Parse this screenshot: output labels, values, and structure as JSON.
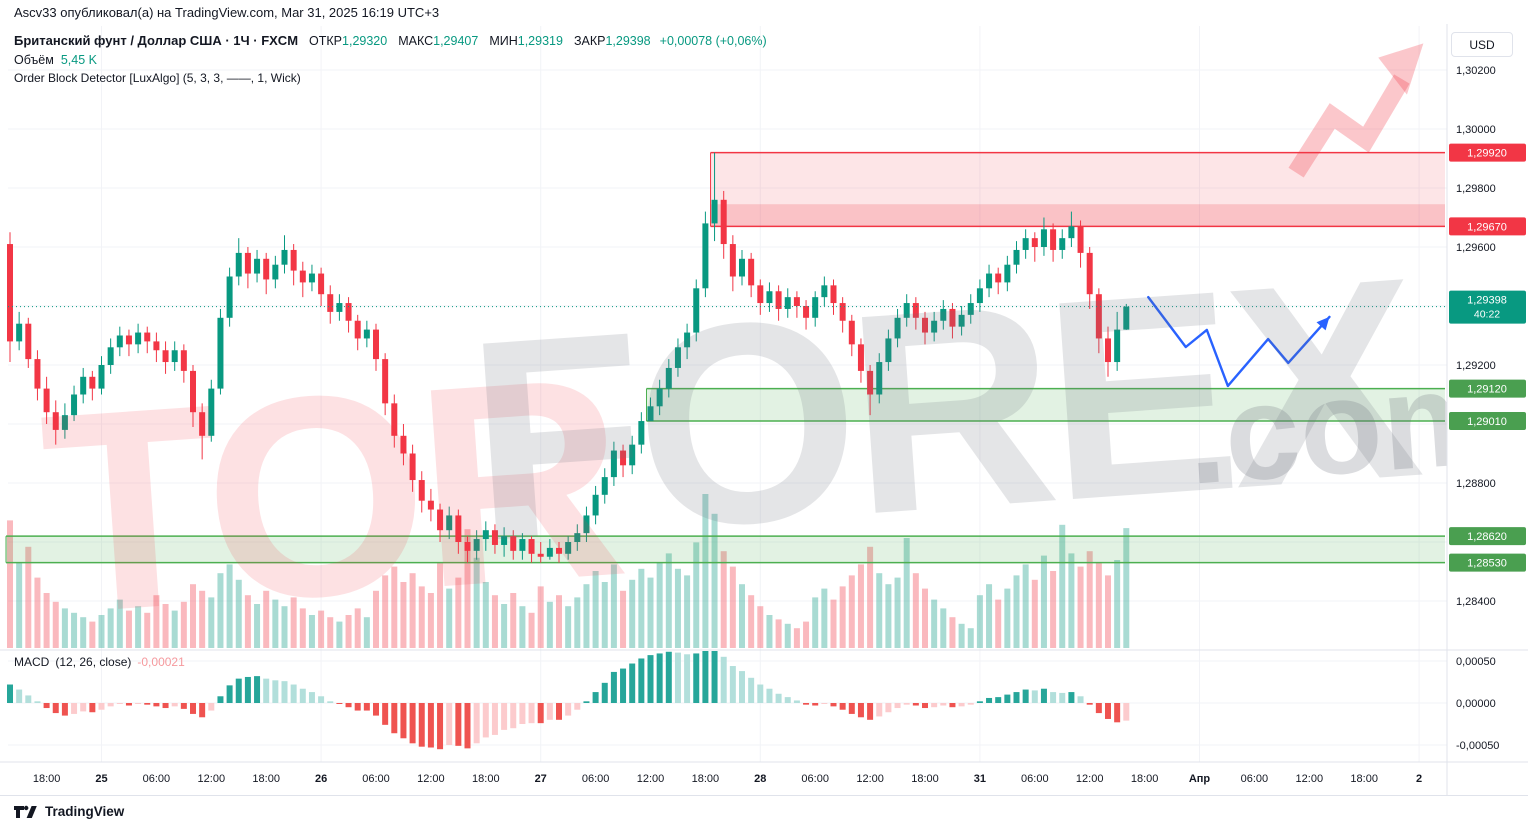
{
  "publisher_line": "Ascv33 опубликовал(а) на TradingView.com, Mar 31, 2025 16:19 UTC+3",
  "header": {
    "symbol_title": "Британский фунт / Доллар США · 1Ч · FXCM",
    "open_label": "ОТКР",
    "open_value": "1,29320",
    "high_label": "МАКС",
    "high_value": "1,29407",
    "low_label": "МИН",
    "low_value": "1,29319",
    "close_label": "ЗАКР",
    "close_value": "1,29398",
    "change": "+0,00078 (+0,06%)",
    "volume_label": "Объём",
    "volume_value": "5,45 K",
    "indicator_line": "Order Block Detector [LuxAlgo] (5, 3, 3, ——, 1, Wick)"
  },
  "macd_legend": {
    "name": "MACD",
    "params": "(12, 26, close)",
    "value": "-0,00021"
  },
  "currency_button": "USD",
  "footer_brand": "TradingView",
  "watermark": {
    "left": "TOR",
    "right": "FOREX",
    "suffix": ".com"
  },
  "chart_data": {
    "type": "candlestick",
    "title": "GBP/USD · 1H · FXCM with volume and MACD panes",
    "panes": [
      "price+volume+order-blocks",
      "macd-histogram"
    ],
    "price_axis_labels": [
      {
        "text": "1,30200",
        "value": 1.302
      },
      {
        "text": "1,30000",
        "value": 1.3
      },
      {
        "text": "1,29800",
        "value": 1.298
      },
      {
        "text": "1,29600",
        "value": 1.296
      },
      {
        "text": "1,29200",
        "value": 1.292
      },
      {
        "text": "1,28800",
        "value": 1.288
      },
      {
        "text": "1,28400",
        "value": 1.284
      }
    ],
    "macd_axis_labels": [
      {
        "text": "0,00050",
        "value": 0.0005
      },
      {
        "text": "0,00000",
        "value": 0.0
      },
      {
        "text": "-0,00050",
        "value": -0.0005
      }
    ],
    "time_axis_labels": [
      [
        4,
        "18:00",
        false
      ],
      [
        10,
        "25",
        true
      ],
      [
        16,
        "06:00",
        false
      ],
      [
        22,
        "12:00",
        false
      ],
      [
        28,
        "18:00",
        false
      ],
      [
        34,
        "26",
        true
      ],
      [
        40,
        "06:00",
        false
      ],
      [
        46,
        "12:00",
        false
      ],
      [
        52,
        "18:00",
        false
      ],
      [
        58,
        "27",
        true
      ],
      [
        64,
        "06:00",
        false
      ],
      [
        70,
        "12:00",
        false
      ],
      [
        76,
        "18:00",
        false
      ],
      [
        82,
        "28",
        true
      ],
      [
        88,
        "06:00",
        false
      ],
      [
        94,
        "12:00",
        false
      ],
      [
        100,
        "18:00",
        false
      ],
      [
        106,
        "31",
        true
      ],
      [
        112,
        "06:00",
        false
      ],
      [
        118,
        "12:00",
        false
      ],
      [
        124,
        "18:00",
        false
      ],
      [
        130,
        "Апр",
        true
      ],
      [
        136,
        "06:00",
        false
      ],
      [
        142,
        "12:00",
        false
      ],
      [
        148,
        "18:00",
        false
      ],
      [
        154,
        "2",
        true
      ]
    ],
    "candles": [
      [
        1.2961,
        1.2965,
        1.2921,
        1.2928
      ],
      [
        1.2928,
        1.2938,
        1.2925,
        1.2934
      ],
      [
        1.2934,
        1.2936,
        1.2919,
        1.2922
      ],
      [
        1.2922,
        1.2925,
        1.2908,
        1.2912
      ],
      [
        1.2912,
        1.2916,
        1.29,
        1.2904
      ],
      [
        1.2904,
        1.2908,
        1.2893,
        1.2898
      ],
      [
        1.2898,
        1.2907,
        1.2895,
        1.2903
      ],
      [
        1.2903,
        1.2913,
        1.2901,
        1.291
      ],
      [
        1.291,
        1.2919,
        1.2907,
        1.2916
      ],
      [
        1.2916,
        1.2918,
        1.2908,
        1.2912
      ],
      [
        1.2912,
        1.2923,
        1.291,
        1.292
      ],
      [
        1.292,
        1.2929,
        1.2917,
        1.2926
      ],
      [
        1.2926,
        1.2933,
        1.2923,
        1.293
      ],
      [
        1.293,
        1.2932,
        1.2923,
        1.2927
      ],
      [
        1.2927,
        1.2934,
        1.2924,
        1.2931
      ],
      [
        1.2931,
        1.2933,
        1.2924,
        1.2928
      ],
      [
        1.2928,
        1.2931,
        1.2921,
        1.2925
      ],
      [
        1.2925,
        1.2928,
        1.2917,
        1.2921
      ],
      [
        1.2921,
        1.2928,
        1.2918,
        1.2925
      ],
      [
        1.2925,
        1.2927,
        1.2914,
        1.2918
      ],
      [
        1.2918,
        1.292,
        1.2899,
        1.2904
      ],
      [
        1.2904,
        1.2907,
        1.2888,
        1.2896
      ],
      [
        1.2896,
        1.2915,
        1.2894,
        1.2912
      ],
      [
        1.2912,
        1.2939,
        1.291,
        1.2936
      ],
      [
        1.2936,
        1.2953,
        1.2933,
        1.295
      ],
      [
        1.295,
        1.2963,
        1.2947,
        1.2958
      ],
      [
        1.2958,
        1.296,
        1.2946,
        1.2951
      ],
      [
        1.2951,
        1.2959,
        1.2948,
        1.2956
      ],
      [
        1.2956,
        1.2958,
        1.2944,
        1.2949
      ],
      [
        1.2949,
        1.2957,
        1.2946,
        1.2954
      ],
      [
        1.2954,
        1.2964,
        1.2951,
        1.2959
      ],
      [
        1.2959,
        1.2961,
        1.2947,
        1.2952
      ],
      [
        1.2952,
        1.2955,
        1.2943,
        1.2948
      ],
      [
        1.2948,
        1.2954,
        1.2945,
        1.2951
      ],
      [
        1.2951,
        1.2953,
        1.294,
        1.2944
      ],
      [
        1.2944,
        1.2947,
        1.2934,
        1.2938
      ],
      [
        1.2938,
        1.2944,
        1.2935,
        1.2941
      ],
      [
        1.2941,
        1.2943,
        1.2931,
        1.2935
      ],
      [
        1.2935,
        1.2937,
        1.2925,
        1.2929
      ],
      [
        1.2929,
        1.2935,
        1.2926,
        1.2932
      ],
      [
        1.2932,
        1.2934,
        1.2918,
        1.2922
      ],
      [
        1.2922,
        1.2924,
        1.2903,
        1.2907
      ],
      [
        1.2907,
        1.291,
        1.2892,
        1.2896
      ],
      [
        1.2896,
        1.29,
        1.2886,
        1.289
      ],
      [
        1.289,
        1.2893,
        1.2877,
        1.2881
      ],
      [
        1.2881,
        1.2884,
        1.287,
        1.2874
      ],
      [
        1.2874,
        1.2878,
        1.2867,
        1.2871
      ],
      [
        1.2871,
        1.2873,
        1.286,
        1.2864
      ],
      [
        1.2864,
        1.2872,
        1.2861,
        1.2869
      ],
      [
        1.2869,
        1.2871,
        1.2856,
        1.286
      ],
      [
        1.286,
        1.2862,
        1.2853,
        1.2857
      ],
      [
        1.2857,
        1.2864,
        1.2854,
        1.2861
      ],
      [
        1.2861,
        1.2867,
        1.2857,
        1.2864
      ],
      [
        1.2864,
        1.2866,
        1.2856,
        1.2859
      ],
      [
        1.2859,
        1.2865,
        1.2855,
        1.2862
      ],
      [
        1.2862,
        1.2864,
        1.2854,
        1.2857
      ],
      [
        1.2857,
        1.2863,
        1.2854,
        1.2861
      ],
      [
        1.2861,
        1.2862,
        1.2853,
        1.2856
      ],
      [
        1.2856,
        1.286,
        1.2853,
        1.2855
      ],
      [
        1.2855,
        1.2861,
        1.2854,
        1.2858
      ],
      [
        1.2858,
        1.286,
        1.2853,
        1.2856
      ],
      [
        1.2856,
        1.2862,
        1.2854,
        1.286
      ],
      [
        1.286,
        1.2866,
        1.2857,
        1.2863
      ],
      [
        1.2863,
        1.2872,
        1.286,
        1.2869
      ],
      [
        1.2869,
        1.2879,
        1.2866,
        1.2876
      ],
      [
        1.2876,
        1.2885,
        1.2873,
        1.2882
      ],
      [
        1.2882,
        1.2894,
        1.2879,
        1.2891
      ],
      [
        1.2891,
        1.2893,
        1.2882,
        1.2886
      ],
      [
        1.2886,
        1.2896,
        1.2883,
        1.2893
      ],
      [
        1.2893,
        1.2904,
        1.289,
        1.2901
      ],
      [
        1.2901,
        1.2909,
        1.2901,
        1.2906
      ],
      [
        1.2906,
        1.2915,
        1.2903,
        1.2912
      ],
      [
        1.2912,
        1.2922,
        1.2909,
        1.2919
      ],
      [
        1.2919,
        1.2929,
        1.2916,
        1.2926
      ],
      [
        1.2926,
        1.2934,
        1.2922,
        1.2931
      ],
      [
        1.2931,
        1.2949,
        1.2928,
        1.2946
      ],
      [
        1.2946,
        1.2972,
        1.2943,
        1.2968
      ],
      [
        1.2968,
        1.2992,
        1.2962,
        1.2976
      ],
      [
        1.2976,
        1.2979,
        1.2956,
        1.2961
      ],
      [
        1.2961,
        1.2964,
        1.2945,
        1.295
      ],
      [
        1.295,
        1.2959,
        1.2947,
        1.2956
      ],
      [
        1.2956,
        1.2958,
        1.2943,
        1.2947
      ],
      [
        1.2947,
        1.2949,
        1.2937,
        1.2941
      ],
      [
        1.2941,
        1.2948,
        1.2938,
        1.2945
      ],
      [
        1.2945,
        1.2947,
        1.2935,
        1.2939
      ],
      [
        1.2939,
        1.2946,
        1.2936,
        1.2943
      ],
      [
        1.2943,
        1.2945,
        1.2936,
        1.294
      ],
      [
        1.294,
        1.2942,
        1.2932,
        1.2936
      ],
      [
        1.2936,
        1.2945,
        1.2933,
        1.2943
      ],
      [
        1.2943,
        1.295,
        1.294,
        1.2947
      ],
      [
        1.2947,
        1.2949,
        1.2937,
        1.2941
      ],
      [
        1.2941,
        1.2943,
        1.2931,
        1.2935
      ],
      [
        1.2935,
        1.2937,
        1.2923,
        1.2927
      ],
      [
        1.2927,
        1.2929,
        1.2914,
        1.2918
      ],
      [
        1.2918,
        1.292,
        1.2903,
        1.291
      ],
      [
        1.291,
        1.2924,
        1.2907,
        1.2921
      ],
      [
        1.2921,
        1.2932,
        1.2918,
        1.2929
      ],
      [
        1.2929,
        1.2939,
        1.2926,
        1.2936
      ],
      [
        1.2936,
        1.2944,
        1.2933,
        1.2941
      ],
      [
        1.2941,
        1.2943,
        1.2932,
        1.2936
      ],
      [
        1.2936,
        1.2938,
        1.2927,
        1.2931
      ],
      [
        1.2931,
        1.2938,
        1.2928,
        1.2935
      ],
      [
        1.2935,
        1.2942,
        1.2932,
        1.2939
      ],
      [
        1.2939,
        1.2941,
        1.2929,
        1.2933
      ],
      [
        1.2933,
        1.294,
        1.293,
        1.2937
      ],
      [
        1.2937,
        1.2944,
        1.2934,
        1.2941
      ],
      [
        1.2941,
        1.2949,
        1.2938,
        1.2946
      ],
      [
        1.2946,
        1.2954,
        1.2943,
        1.2951
      ],
      [
        1.2951,
        1.2953,
        1.2944,
        1.2948
      ],
      [
        1.2948,
        1.2957,
        1.2945,
        1.2954
      ],
      [
        1.2954,
        1.2962,
        1.2951,
        1.2959
      ],
      [
        1.2959,
        1.2966,
        1.2956,
        1.2963
      ],
      [
        1.2963,
        1.2965,
        1.2955,
        1.296
      ],
      [
        1.296,
        1.297,
        1.2957,
        1.2966
      ],
      [
        1.2966,
        1.2968,
        1.2955,
        1.2959
      ],
      [
        1.2959,
        1.2966,
        1.2956,
        1.2963
      ],
      [
        1.2963,
        1.2972,
        1.296,
        1.2967
      ],
      [
        1.2967,
        1.2969,
        1.2953,
        1.2958
      ],
      [
        1.2958,
        1.296,
        1.2939,
        1.2944
      ],
      [
        1.2944,
        1.2946,
        1.2924,
        1.2929
      ],
      [
        1.2929,
        1.2933,
        1.2916,
        1.2921
      ],
      [
        1.2921,
        1.2938,
        1.2918,
        1.2932
      ],
      [
        1.2932,
        1.29407,
        1.29319,
        1.29398
      ]
    ],
    "volume_k": [
      5.8,
      3.9,
      4.6,
      3.2,
      2.5,
      2.1,
      1.8,
      1.6,
      1.4,
      1.2,
      1.5,
      1.8,
      2.2,
      1.7,
      1.9,
      1.6,
      2.4,
      2.0,
      1.7,
      2.1,
      2.9,
      2.6,
      2.3,
      3.4,
      3.8,
      3.1,
      2.4,
      2.0,
      2.6,
      2.2,
      1.9,
      2.3,
      1.8,
      1.5,
      1.7,
      1.4,
      1.2,
      1.5,
      1.8,
      1.4,
      2.6,
      3.3,
      3.7,
      3.0,
      3.4,
      2.8,
      2.5,
      3.9,
      2.7,
      3.2,
      5.4,
      4.1,
      3.0,
      2.4,
      2.0,
      2.5,
      1.9,
      1.6,
      2.8,
      2.1,
      2.4,
      1.9,
      2.3,
      2.9,
      3.5,
      3.0,
      3.8,
      2.6,
      3.1,
      3.6,
      3.2,
      3.9,
      4.3,
      3.6,
      3.3,
      4.8,
      7.0,
      6.1,
      4.4,
      3.7,
      2.9,
      2.4,
      1.9,
      1.5,
      1.3,
      1.1,
      0.9,
      1.2,
      2.3,
      2.7,
      2.2,
      2.8,
      3.3,
      3.8,
      4.6,
      3.4,
      2.9,
      3.2,
      5.0,
      3.4,
      2.7,
      2.2,
      1.8,
      1.4,
      1.1,
      0.9,
      2.4,
      2.9,
      2.2,
      2.7,
      3.3,
      3.8,
      3.1,
      4.2,
      3.5,
      5.6,
      4.3,
      3.7,
      4.4,
      3.9,
      3.3,
      4.0,
      5.45
    ],
    "macd_hist": [
      0.00022,
      0.00016,
      9e-05,
      2e-05,
      -6e-05,
      -0.00012,
      -0.00015,
      -0.00013,
      -0.0001,
      -0.00011,
      -8e-05,
      -4e-05,
      -1e-05,
      -3e-05,
      -1e-05,
      -2e-05,
      -4e-05,
      -6e-05,
      -4e-05,
      -7e-05,
      -0.00013,
      -0.00017,
      -9e-05,
      8e-05,
      0.00021,
      0.00029,
      0.00031,
      0.00032,
      0.00029,
      0.00027,
      0.00026,
      0.00022,
      0.00017,
      0.00013,
      8e-05,
      2e-05,
      -1e-05,
      -5e-05,
      -9e-05,
      -9e-05,
      -0.00015,
      -0.00026,
      -0.00036,
      -0.00042,
      -0.00048,
      -0.00052,
      -0.00053,
      -0.00055,
      -0.0005,
      -0.00051,
      -0.00054,
      -0.00048,
      -0.00041,
      -0.00038,
      -0.00032,
      -0.0003,
      -0.00025,
      -0.00024,
      -0.00024,
      -0.0002,
      -0.0002,
      -0.00015,
      -8e-05,
      2e-05,
      0.00013,
      0.00024,
      0.00037,
      0.00041,
      0.00047,
      0.00053,
      0.00057,
      0.00059,
      0.00061,
      0.0006,
      0.00058,
      0.00059,
      0.00062,
      0.00063,
      0.00055,
      0.00044,
      0.00038,
      0.0003,
      0.00022,
      0.00017,
      0.00011,
      7e-05,
      3e-05,
      -2e-05,
      -3e-05,
      -1e-05,
      -4e-05,
      -8e-05,
      -0.00013,
      -0.00017,
      -0.0002,
      -0.00016,
      -0.00011,
      -6e-05,
      -2e-05,
      -3e-05,
      -6e-05,
      -5e-05,
      -3e-05,
      -5e-05,
      -4e-05,
      -2e-05,
      2e-05,
      6e-05,
      7e-05,
      0.0001,
      0.00013,
      0.00016,
      0.00015,
      0.00017,
      0.00013,
      0.00012,
      0.00013,
      8e-05,
      -2e-05,
      -0.00012,
      -0.00019,
      -0.00023,
      -0.00021
    ],
    "order_blocks": [
      {
        "side": "bearish",
        "top": 1.2992,
        "bottom": 1.2967,
        "start_index": 77,
        "top_label": "1,29920",
        "bottom_label": "1,29670"
      },
      {
        "side": "bearish_inner",
        "top": 1.29745,
        "bottom": 1.2967,
        "start_index": 77
      },
      {
        "side": "bullish",
        "top": 1.2912,
        "bottom": 1.2901,
        "start_index": 70,
        "top_label": "1,29120",
        "bottom_label": "1,29010"
      },
      {
        "side": "bullish",
        "top": 1.2862,
        "bottom": 1.2853,
        "start_index": 0,
        "top_label": "1,28620",
        "bottom_label": "1,28530"
      }
    ],
    "current_price": {
      "value": 1.29398,
      "label": "1,29398",
      "countdown": "40:22"
    },
    "projection_arrow": {
      "points": [
        [
          124.4,
          1.2943
        ],
        [
          128.5,
          1.29261
        ],
        [
          130.8,
          1.29319
        ],
        [
          133.1,
          1.29129
        ],
        [
          137.5,
          1.29288
        ],
        [
          139.7,
          1.29207
        ],
        [
          144.2,
          1.29363
        ]
      ]
    },
    "colors": {
      "up": "#089981",
      "down": "#f23645",
      "vol_up": "rgba(8,153,129,0.35)",
      "vol_down": "rgba(242,54,69,0.35)",
      "macd_grow_above": "#26a69a",
      "macd_fall_above": "#b2dfdb",
      "macd_fall_below": "#ef5350",
      "macd_grow_below": "#fccbcd",
      "accent_blue": "#2962ff",
      "zone_red_border": "#f23645",
      "zone_red_fill": "rgba(242,54,69,0.13)",
      "zone_red_inner_fill": "rgba(242,54,69,0.20)",
      "zone_green_border": "#4caf50",
      "zone_green_fill": "rgba(76,175,80,0.16)",
      "badge_red": "#f23645",
      "badge_green": "#4a9f50",
      "badge_current": "#089981",
      "grid": "#f2f3f7",
      "separator": "#e0e3eb",
      "axis_text": "#131722",
      "wm_red": "rgba(242,54,69,0.15)",
      "wm_gray": "rgba(105,110,120,0.18)",
      "wm_gray2": "rgba(105,110,120,0.24)",
      "wm_arrow": "rgba(242,54,69,0.28)"
    }
  }
}
